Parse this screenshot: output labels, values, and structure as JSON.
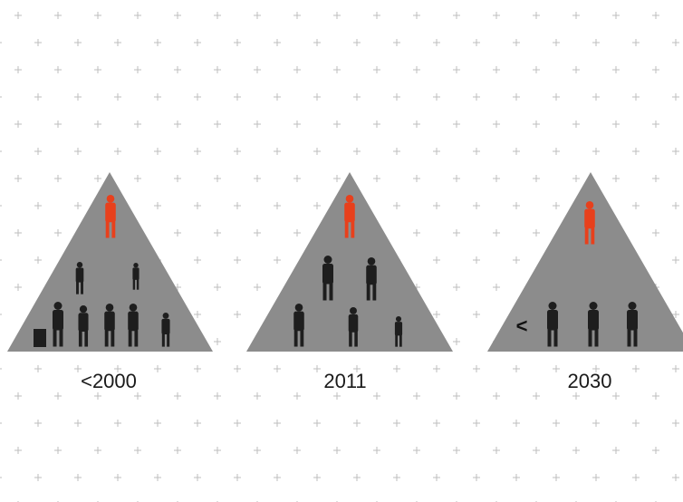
{
  "pyramids": [
    {
      "label": "<2000"
    },
    {
      "label": "2011"
    },
    {
      "label": "2030",
      "marker": "<"
    }
  ]
}
